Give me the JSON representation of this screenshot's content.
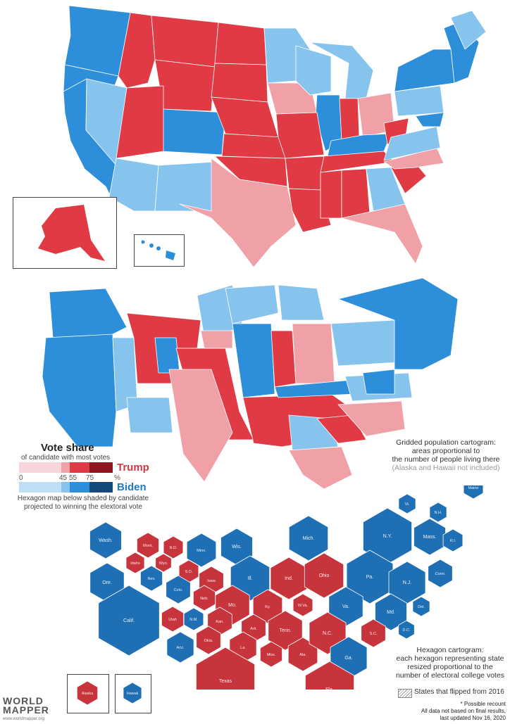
{
  "colors": {
    "trump_shades": [
      "#fad4db",
      "#f0a1a8",
      "#e03a44",
      "#8e1620"
    ],
    "biden_shades": [
      "#bee0f7",
      "#86c4ee",
      "#2d8fd9",
      "#144a7a"
    ],
    "hex_trump": "#c8343c",
    "hex_biden": "#1f6fb5"
  },
  "legend": {
    "title": "Vote share",
    "subtitle": "of candidate with most votes",
    "ticks": [
      "0",
      "45",
      "55",
      "75",
      "%"
    ],
    "trump_label": "Trump",
    "biden_label": "Biden",
    "hex_note_line1": "Hexagon map below shaded by candidate",
    "hex_note_line2": "projected to winning the elextoral vote"
  },
  "cartogram_caption": {
    "line1": "Gridded population cartogram:",
    "line2": "areas proportional to",
    "line3": "the number of people living there",
    "line4": "(Alaska and Hawaii not included)"
  },
  "hex_caption": {
    "line1": "Hexagon cartogram:",
    "line2": "each hexagon representing state",
    "line3": "resized proportional to the",
    "line4": "number of electoral college votes"
  },
  "flipped_label": "States that flipped from 2016",
  "footnotes": {
    "recount": "* Possible recount",
    "final": "All data not based on final results,",
    "updated": "last updated Nov 16, 2020"
  },
  "logo": {
    "line1": "WORLD",
    "line2": "MAPPER",
    "url": "www.worldmapper.org"
  },
  "hex_states": [
    {
      "label": "Wash.",
      "winner": "biden"
    },
    {
      "label": "Mont.",
      "winner": "trump"
    },
    {
      "label": "N.D.",
      "winner": "trump"
    },
    {
      "label": "Minn.",
      "winner": "biden"
    },
    {
      "label": "Wis.",
      "winner": "biden"
    },
    {
      "label": "Mich.",
      "winner": "biden"
    },
    {
      "label": "Vt.",
      "winner": "biden"
    },
    {
      "label": "N.H.",
      "winner": "biden"
    },
    {
      "label": "Maine",
      "winner": "biden"
    },
    {
      "label": "Idaho",
      "winner": "trump"
    },
    {
      "label": "Wyo.",
      "winner": "trump"
    },
    {
      "label": "S.D.",
      "winner": "trump"
    },
    {
      "label": "Iowa",
      "winner": "trump"
    },
    {
      "label": "Ill.",
      "winner": "biden"
    },
    {
      "label": "Ind.",
      "winner": "trump"
    },
    {
      "label": "Ohio",
      "winner": "trump"
    },
    {
      "label": "N.Y.",
      "winner": "biden"
    },
    {
      "label": "Mass.",
      "winner": "biden"
    },
    {
      "label": "R.I.",
      "winner": "biden"
    },
    {
      "label": "Ore.",
      "winner": "biden"
    },
    {
      "label": "Nev.",
      "winner": "biden"
    },
    {
      "label": "Colo.",
      "winner": "biden"
    },
    {
      "label": "Neb.",
      "winner": "trump"
    },
    {
      "label": "Mo.",
      "winner": "trump"
    },
    {
      "label": "Ky.",
      "winner": "trump"
    },
    {
      "label": "W.Va.",
      "winner": "trump"
    },
    {
      "label": "Pa.",
      "winner": "biden"
    },
    {
      "label": "N.J.",
      "winner": "biden"
    },
    {
      "label": "Conn.",
      "winner": "biden"
    },
    {
      "label": "Calif.",
      "winner": "biden"
    },
    {
      "label": "Utah",
      "winner": "trump"
    },
    {
      "label": "N.M.",
      "winner": "biden"
    },
    {
      "label": "Kan.",
      "winner": "trump"
    },
    {
      "label": "Ark.",
      "winner": "trump"
    },
    {
      "label": "Tenn.",
      "winner": "trump"
    },
    {
      "label": "Va.",
      "winner": "biden"
    },
    {
      "label": "Md.",
      "winner": "biden"
    },
    {
      "label": "Del.",
      "winner": "biden"
    },
    {
      "label": "D.C.",
      "winner": "biden"
    },
    {
      "label": "Ariz.",
      "winner": "biden"
    },
    {
      "label": "Okla.",
      "winner": "trump"
    },
    {
      "label": "La.",
      "winner": "trump"
    },
    {
      "label": "Miss.",
      "winner": "trump"
    },
    {
      "label": "Ala.",
      "winner": "trump"
    },
    {
      "label": "N.C.",
      "winner": "trump"
    },
    {
      "label": "S.C.",
      "winner": "trump"
    },
    {
      "label": "Ga.",
      "winner": "biden"
    },
    {
      "label": "Texas",
      "winner": "trump"
    },
    {
      "label": "Fla.",
      "winner": "trump"
    },
    {
      "label": "Alaska",
      "winner": "trump"
    },
    {
      "label": "Hawaii",
      "winner": "biden"
    }
  ]
}
